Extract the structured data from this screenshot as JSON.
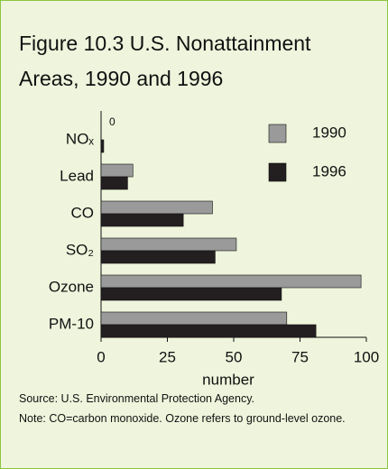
{
  "chart_data": {
    "type": "bar",
    "orientation": "horizontal",
    "title_lines": [
      "Figure 10.3  U.S. Nonattainment",
      "Areas, 1990 and 1996"
    ],
    "categories": [
      "NOₓ",
      "Lead",
      "CO",
      "SO₂",
      "Ozone",
      "PM-10"
    ],
    "series": [
      {
        "name": "1990",
        "color": "#9a9a9a",
        "values": [
          0,
          12,
          42,
          51,
          98,
          70
        ]
      },
      {
        "name": "1996",
        "color": "#231f20",
        "values": [
          1,
          10,
          31,
          43,
          68,
          81
        ]
      }
    ],
    "xlabel": "number",
    "xlim": [
      0,
      100
    ],
    "xticks": [
      0,
      25,
      50,
      75,
      100
    ],
    "legend": "top-right",
    "source": "Source: U.S. Environmental Protection Agency.",
    "note": "Note: CO=carbon monoxide. Ozone refers to ground-level ozone."
  }
}
